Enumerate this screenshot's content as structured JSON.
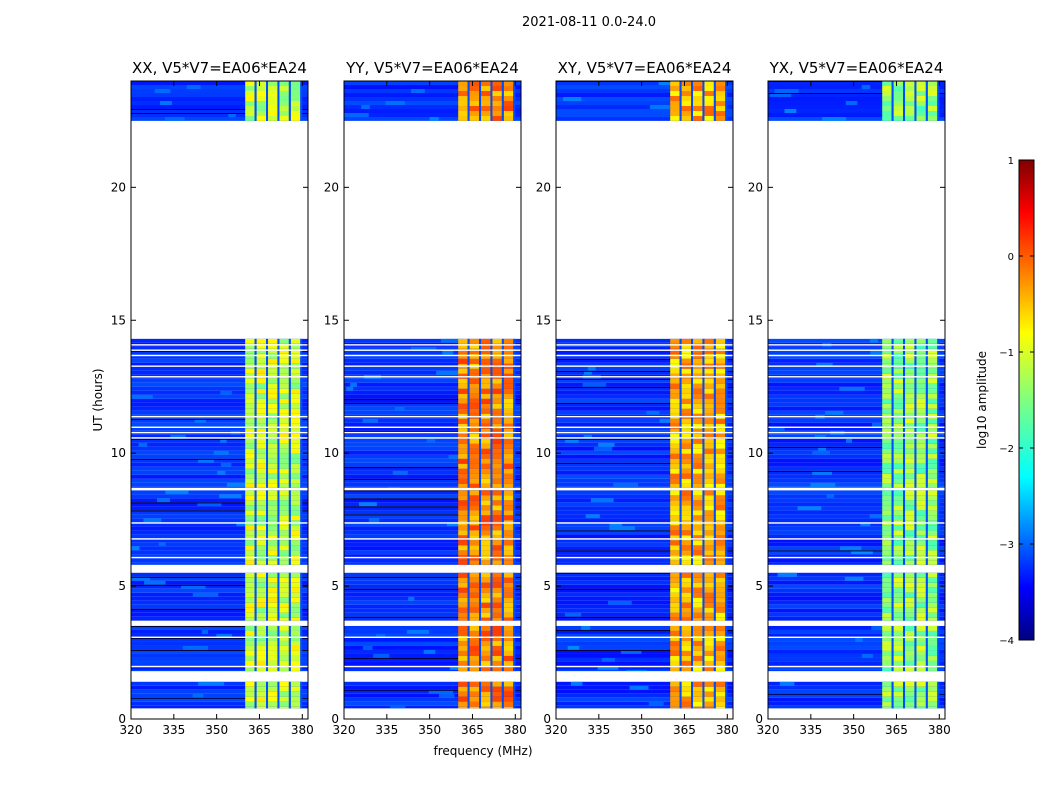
{
  "figure": {
    "suptitle": "2021-08-11 0.0-24.0"
  },
  "chart_data": {
    "type": "heatmap",
    "suptitle": "2021-08-11 0.0-24.0",
    "xlabel": "frequency (MHz)",
    "ylabel": "UT (hours)",
    "xlim": [
      320,
      382
    ],
    "ylim": [
      0,
      24
    ],
    "xticks": [
      320,
      335,
      350,
      365,
      380
    ],
    "yticks": [
      0,
      5,
      10,
      15,
      20
    ],
    "panels": [
      {
        "title": "XX, V5*V7=EA06*EA24",
        "rfi_level": 0.55
      },
      {
        "title": "YY, V5*V7=EA06*EA24",
        "rfi_level": 0.72
      },
      {
        "title": "XY, V5*V7=EA06*EA24",
        "rfi_level": 0.68
      },
      {
        "title": "YX, V5*V7=EA06*EA24",
        "rfi_level": 0.5
      }
    ],
    "data_blocks_ut": [
      [
        0.4,
        1.4
      ],
      [
        1.8,
        3.5
      ],
      [
        3.7,
        5.5
      ],
      [
        5.8,
        8.6
      ],
      [
        8.7,
        14.3
      ],
      [
        22.5,
        24.0
      ]
    ],
    "flagged_ut": [
      [
        1.4,
        1.8
      ],
      [
        3.5,
        3.7
      ],
      [
        5.5,
        5.8
      ],
      [
        8.6,
        8.7
      ],
      [
        14.3,
        22.5
      ]
    ],
    "rfi_band_mhz": [
      360,
      380
    ],
    "colorbar": {
      "label": "log10 amplitude",
      "min": -4,
      "max": 1,
      "ticks": [
        1,
        0,
        -1,
        -2,
        -3,
        -4
      ],
      "tick_labels": [
        "1",
        "0",
        "−1",
        "−2",
        "−3",
        "−4"
      ],
      "colormap": "jet"
    }
  }
}
